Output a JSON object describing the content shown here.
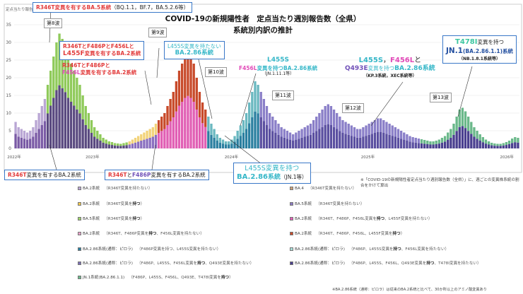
{
  "chart_data": {
    "type": "bar",
    "title": "COVID-19の新規陽性者　定点当たり週別報告数（全県）",
    "subtitle": "系統別内訳の推計",
    "ylabel": "定点当たり報告数",
    "ylim": [
      0,
      35
    ],
    "yticks": [
      0,
      5,
      10,
      15,
      20,
      25,
      30,
      35
    ],
    "year_labels": [
      "2022年",
      "2023年",
      "2024年",
      "2025年",
      "2026年"
    ],
    "grid": true,
    "peaks": [
      {
        "label": "第8波",
        "value": 32.5
      },
      {
        "label": "第9波",
        "value": 27
      },
      {
        "label": "第10波",
        "value": 19
      },
      {
        "label": "第11波",
        "value": 12.5
      },
      {
        "label": "第12波",
        "value": 8.5
      },
      {
        "label": "第13波",
        "value": 11.5
      }
    ],
    "series": [
      {
        "name": "BA.2系統",
        "color": "#7a5aa5"
      },
      {
        "name": "BA.4",
        "color": "#9a6b3a"
      },
      {
        "name": "BA.5系統",
        "color": "#8fca5a"
      },
      {
        "name": "R346T/F486P/F456L系統",
        "color": "#e15fb4"
      },
      {
        "name": "BA.2.86系統",
        "color": "#2a7fa0"
      },
      {
        "name": "JN.1系統",
        "color": "#4a3f8f"
      },
      {
        "name": "R346T系統",
        "color": "#f2d37a"
      }
    ],
    "weekly_totals": [
      7.5,
      6,
      5.5,
      5,
      4.5,
      5,
      6,
      8,
      10,
      12,
      14,
      18,
      22,
      26,
      30,
      32.5,
      31,
      29,
      26,
      24,
      22,
      20,
      18,
      15,
      12,
      10,
      8,
      6,
      5,
      4,
      3,
      2.5,
      2,
      1.8,
      1.5,
      1.4,
      1.3,
      1.5,
      1.7,
      2,
      2.5,
      3,
      3.5,
      4,
      4.5,
      5,
      5.5,
      6,
      7,
      8,
      9,
      10,
      12,
      14,
      16,
      19,
      22,
      24,
      26,
      27,
      26,
      24,
      20,
      16,
      13,
      11,
      9,
      7,
      5.5,
      4,
      3,
      2.5,
      2,
      2,
      2.5,
      3.5,
      5,
      6.5,
      8,
      10,
      13,
      16,
      19,
      18,
      16,
      14,
      12,
      10,
      9,
      8,
      7,
      6,
      5.5,
      5,
      4.5,
      4,
      4.5,
      5,
      5.5,
      6,
      6.5,
      7,
      8,
      9,
      10,
      11,
      12,
      12.5,
      12,
      11,
      10,
      9,
      8,
      7.5,
      7,
      6.5,
      6,
      5.5,
      5.5,
      6,
      6.5,
      7,
      7.5,
      8,
      8.5,
      8.5,
      8,
      7.5,
      7,
      6.5,
      6,
      5.5,
      5,
      4.5,
      4,
      3.5,
      3.2,
      3,
      2.8,
      2.6,
      2.4,
      2.2,
      2,
      2,
      2.2,
      2.5,
      3,
      3.5,
      4.5,
      5.5,
      7,
      9,
      11,
      11.5,
      10.5,
      9,
      7.5,
      6,
      5,
      4,
      3.2,
      2.5,
      2,
      1.6,
      1.4,
      1.3,
      1.3,
      1.5,
      1.8,
      2.2,
      2.8,
      3.2,
      3
    ]
  },
  "annotations": {
    "ba5": {
      "pre": "R346T変異を有する",
      "variant": "BA.5系統",
      "post": "（BQ.1.1，BF.7，BA.5.2.6等）"
    },
    "l455f": {
      "l1a": "R346TとF486PとF456Lと",
      "l2a": "L455F",
      "l2b": "変異を有するBA.2系統"
    },
    "f456l": {
      "l1": "R346TとF486Pと",
      "l2a": "F456L",
      "l2b": "変異を有するBA.2系統"
    },
    "ba286": {
      "l1": "L455S変異を持たない",
      "l2": "BA.2.86系統"
    },
    "l455s_f456l": {
      "l1": "L455S",
      "l2a": "F456L",
      "l2b": "変異を持つBA.2.86系統",
      "l3": "（JN.1.11.1等）"
    },
    "l455s_q493e": {
      "l1a": "L455S",
      "l1b": "F456L",
      "l1c": "と",
      "l2a": "Q493E",
      "l2b": "変異を持つ",
      "l2c": "BA.2.86系統",
      "l3": "（KP.3系統，XEC系統等）"
    },
    "t478i": {
      "l1a": "T478I",
      "l1b": "変異を持つ",
      "l2a": "JN.1",
      "l2b": "(BA.2.86.1.1)系統",
      "l3": "（NB.1.8.1系統等）"
    },
    "r346t_ba2": {
      "a": "R346T",
      "b": "変異を有するBA.2系統"
    },
    "r346t_f486p": {
      "a": "R346T",
      "b": "F486P",
      "c": "変異を有するBA.2系統"
    },
    "l455s_ba286": {
      "l1": "L455S変異を持つ",
      "l2a": "BA.2.86",
      "l2b": "系統",
      "l2c": "（JN.1等）"
    }
  },
  "legend": [
    {
      "name": "BA.2系統",
      "desc": "（R346T変異を持たない）",
      "color": "#b9a6d4"
    },
    {
      "name": "BA.4",
      "desc": "（R346T変異を持たない）",
      "color": "#c8a07a"
    },
    {
      "name": "BA.2系統",
      "desc": "（R346T変異を",
      "strong": "持つ",
      "desc2": "）",
      "color": "#f2c94c"
    },
    {
      "name": "BA.5系統",
      "desc": "（R346T変異を持たない）",
      "color": "#8a79c0"
    },
    {
      "name": "BA.5系統",
      "desc": "（R346T変異を",
      "strong": "持つ",
      "desc2": "）",
      "color": "#9ed46a"
    },
    {
      "name": "BA.2系統",
      "desc": "（R346T、F486P変異を",
      "strong": "持つ",
      "desc2": "、F456L変異を持たない）",
      "color": "#e6a0c8"
    },
    {
      "name": "BA.2系統",
      "desc": "（R346T、F486P、F456L変異を",
      "strong": "持つ",
      "desc2": "、L455F変異を持たない）",
      "color": "#e35fb8"
    },
    {
      "name": "BA.2系統",
      "desc": "（R346T、F486P、F456L、L455F変異を",
      "strong": "持つ",
      "desc2": "）",
      "color": "#c84a2a"
    },
    {
      "name": "BA.2.86系統(通称：ピロラ)",
      "desc": "（F486P変異を持つ、L455S変異を持たない）",
      "color": "#2a7fa0"
    },
    {
      "name": "BA.2.86系統(通称：ピロラ)",
      "desc": "（F486P、L455S変異を",
      "strong": "持つ",
      "desc2": "、F456L変異を持たない）",
      "color": "#a8ded8"
    },
    {
      "name": "BA.2.86系統(通称：ピロラ)",
      "desc": "（F486P、L455S、F456L変異を",
      "strong": "持つ",
      "desc2": "、Q493E変異を持たない）",
      "color": "#7a6fb4"
    },
    {
      "name": "BA.2.86系統(通称：ピロラ)",
      "desc": "（F486P、L455S、F456L、Q493E変異を",
      "strong": "持つ",
      "desc2": "、T478I変異を持たない）",
      "color": "#4a3f8f"
    },
    {
      "name": "JN.1系統(BA.2.86.1.1)",
      "desc": "（F486P、L455S、F456L、Q493E、T478I変異を",
      "strong": "持つ",
      "desc2": "）",
      "color": "#6ab88a"
    }
  ],
  "note": "※「COVID-19の新規陽性者定点当たり週別報告数（全県）」に、週ごとの変異株系統の割合をかけて算出",
  "footnote": "※BA.2.86系統（通称：ピロラ）は従来のBA.2系統と比べて、30か所以上のアミノ酸変異あり"
}
